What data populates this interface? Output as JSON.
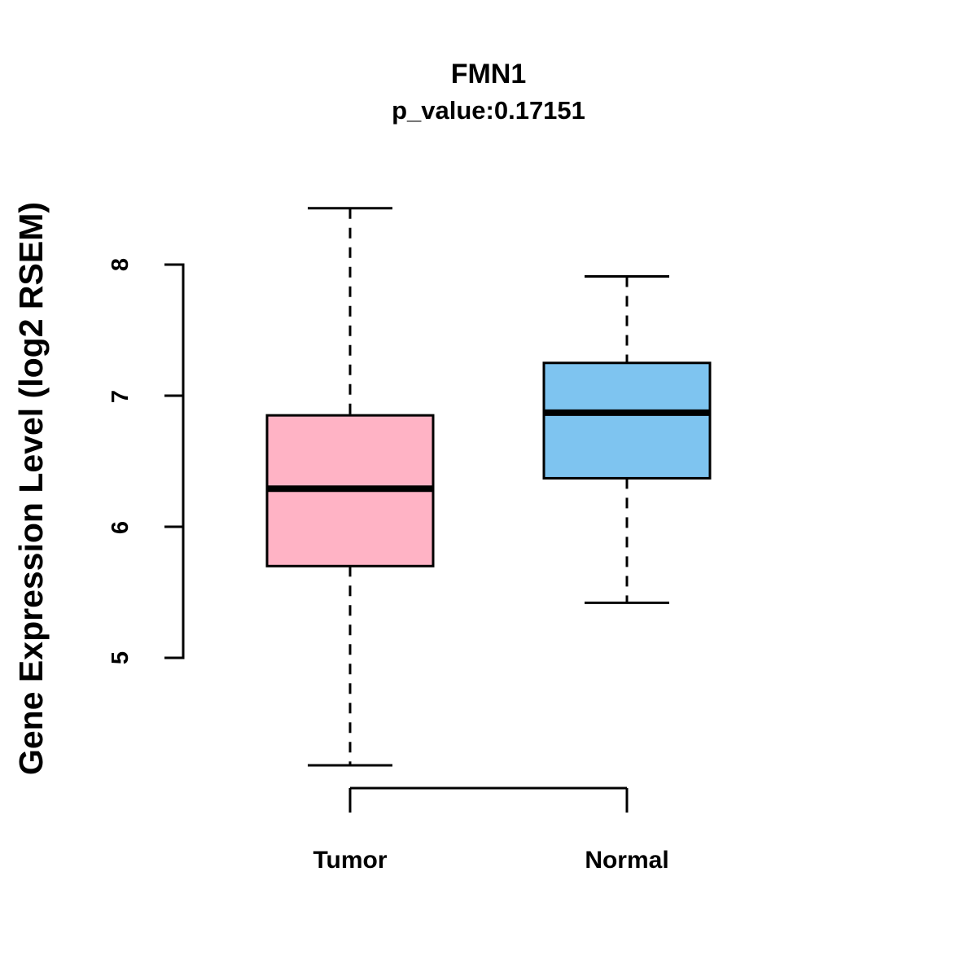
{
  "chart_data": {
    "type": "boxplot",
    "title": "FMN1",
    "subtitle": "p_value:0.17151",
    "ylabel": "Gene Expression Level (log2 RSEM)",
    "xlabel": "",
    "yticks": [
      5,
      6,
      7,
      8
    ],
    "ylim": [
      4.1,
      8.5
    ],
    "grid": false,
    "legend": "none",
    "groups": [
      {
        "label": "Tumor",
        "color": "#FFB3C5",
        "whisker_low": 4.18,
        "q1": 5.7,
        "median": 6.29,
        "q3": 6.85,
        "whisker_high": 8.43
      },
      {
        "label": "Normal",
        "color": "#7EC4F0",
        "whisker_low": 5.42,
        "q1": 6.37,
        "median": 6.87,
        "q3": 7.25,
        "whisker_high": 7.91
      }
    ],
    "colors": {
      "tumor_fill": "#FFB3C5",
      "normal_fill": "#7EC4F0",
      "stroke": "#000000",
      "background": "#FFFFFF"
    }
  }
}
